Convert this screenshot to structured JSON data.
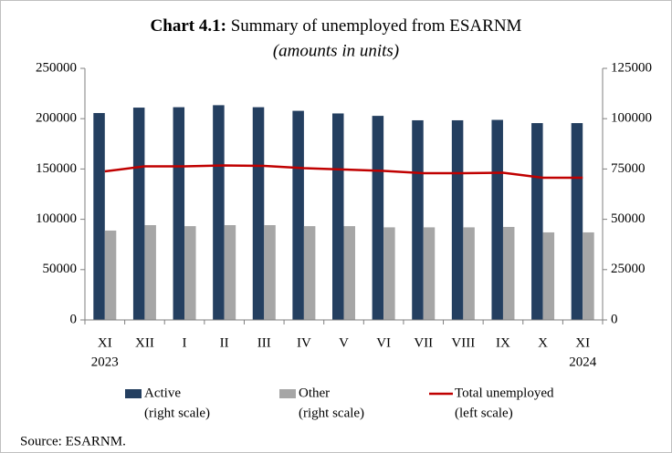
{
  "chart_data": {
    "type": "bar_line",
    "title_prefix": "Chart 4.1:",
    "title": "Summary of unemployed from ESARNM",
    "subtitle": "(amounts in units)",
    "categories": [
      "XI",
      "XII",
      "I",
      "II",
      "III",
      "IV",
      "V",
      "VI",
      "VII",
      "VIII",
      "IX",
      "X",
      "XI"
    ],
    "category_years": [
      "2023",
      null,
      null,
      null,
      null,
      null,
      null,
      null,
      null,
      null,
      null,
      null,
      "2024"
    ],
    "series": [
      {
        "name": "Active",
        "scale_note": "(right scale)",
        "color": "#243f60",
        "kind": "bar",
        "axis": "y2",
        "values": [
          102800,
          105500,
          105700,
          106700,
          105700,
          103900,
          102600,
          101400,
          99200,
          99200,
          99400,
          97800,
          97800
        ]
      },
      {
        "name": "Other",
        "scale_note": "(right scale)",
        "color": "#a6a6a6",
        "kind": "bar",
        "axis": "y2",
        "values": [
          44400,
          47100,
          46600,
          47100,
          47100,
          46600,
          46600,
          46000,
          46000,
          46000,
          46200,
          43500,
          43500
        ]
      },
      {
        "name": "Total unemployed",
        "scale_note": "(left scale)",
        "color": "#c00000",
        "kind": "line",
        "axis": "y",
        "values": [
          147600,
          152600,
          152600,
          153500,
          153100,
          150800,
          149500,
          148100,
          145800,
          145800,
          146300,
          141300,
          141300
        ]
      }
    ],
    "ylim": [
      0,
      250000
    ],
    "yticks": [
      0,
      50000,
      100000,
      150000,
      200000,
      250000
    ],
    "y2lim": [
      0,
      125000
    ],
    "y2ticks": [
      0,
      25000,
      50000,
      75000,
      100000,
      125000
    ],
    "legend": "bottom",
    "source": "Source: ESARNM."
  }
}
